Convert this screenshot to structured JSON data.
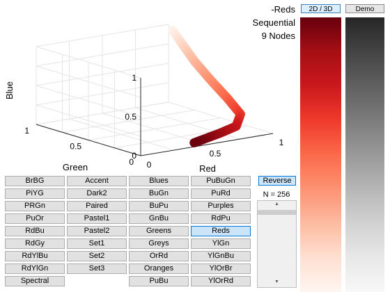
{
  "plot": {
    "x_axis_label": "Red",
    "y_axis_label": "Green",
    "z_axis_label": "Blue",
    "red_ticks": [
      "0",
      "0.5",
      "1"
    ],
    "green_ticks": [
      "0",
      "0.5",
      "1"
    ],
    "blue_ticks": [
      "0",
      "0.5",
      "1"
    ],
    "curve_nodes": [
      [
        1.0,
        0.961,
        0.941
      ],
      [
        0.996,
        0.878,
        0.824
      ],
      [
        0.988,
        0.733,
        0.631
      ],
      [
        0.988,
        0.573,
        0.447
      ],
      [
        0.984,
        0.416,
        0.29
      ],
      [
        0.937,
        0.231,
        0.173
      ],
      [
        0.796,
        0.094,
        0.114
      ],
      [
        0.647,
        0.059,
        0.082
      ],
      [
        0.404,
        0.0,
        0.051
      ]
    ]
  },
  "info": {
    "colormap_name": "-Reds",
    "type": "Sequential",
    "nodes": "9 Nodes"
  },
  "top_buttons": {
    "view_toggle": "2D / 3D",
    "demo": "Demo"
  },
  "colorbars": {
    "colormap_gradient": [
      "#67000d",
      "#a50f15",
      "#cb181d",
      "#ef3b2c",
      "#fb6a4a",
      "#fc9272",
      "#fcbba1",
      "#fee0d2",
      "#fff5f0"
    ],
    "grayscale_gradient": [
      "#262626",
      "#444444",
      "#606060",
      "#7c7c7c",
      "#999999",
      "#b6b6b6",
      "#d2d2d2",
      "#e8e8e8",
      "#f8f8f8"
    ]
  },
  "colormaps": {
    "columns": [
      [
        "BrBG",
        "PiYG",
        "PRGn",
        "PuOr",
        "RdBu",
        "RdGy",
        "RdYlBu",
        "RdYlGn",
        "Spectral"
      ],
      [
        "Accent",
        "Dark2",
        "Paired",
        "Pastel1",
        "Pastel2",
        "Set1",
        "Set2",
        "Set3"
      ],
      [
        "Blues",
        "BuGn",
        "BuPu",
        "GnBu",
        "Greens",
        "Greys",
        "OrRd",
        "Oranges",
        "PuBu"
      ],
      [
        "PuBuGn",
        "PuRd",
        "Purples",
        "RdPu",
        "Reds",
        "YlGn",
        "YlGnBu",
        "YlOrBr",
        "YlOrRd"
      ]
    ],
    "selected": "Reds"
  },
  "panel": {
    "reverse_label": "Reverse",
    "n_label": "N = 256",
    "scroll_up": "▲",
    "scroll_down": "▼"
  }
}
